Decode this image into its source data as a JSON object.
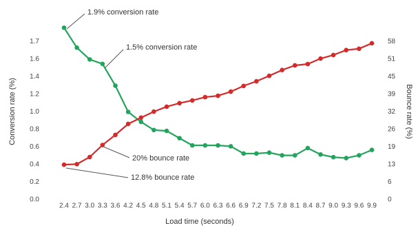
{
  "chart_data": {
    "type": "line",
    "xlabel": "Load time (seconds)",
    "ylabel": "Conversion rate (%)",
    "y2label": "Bounce rate (%)",
    "categories": [
      "2.4",
      "2.7",
      "3.0",
      "3.3",
      "3.6",
      "4.2",
      "4.5",
      "4.8",
      "5.1",
      "5.4",
      "5.7",
      "6.0",
      "6.3",
      "6.6",
      "6.9",
      "7.2",
      "7.5",
      "7.8",
      "8.1",
      "8.4",
      "8.7",
      "9.0",
      "9.3",
      "9.6",
      "9.9"
    ],
    "series": [
      {
        "color": "#22a45d",
        "values": [
          1.9,
          1.68,
          1.55,
          1.5,
          1.26,
          0.97,
          0.86,
          0.77,
          0.76,
          0.68,
          0.6,
          0.6,
          0.6,
          0.59,
          0.51,
          0.51,
          0.52,
          0.49,
          0.49,
          0.57,
          0.5,
          0.47,
          0.46,
          0.49,
          0.55
        ]
      },
      {
        "color": "#d42a2a",
        "axis": "y2",
        "values": [
          12.8,
          13.0,
          15.6,
          20,
          23.7,
          27.7,
          30.0,
          32.2,
          34.0,
          35.3,
          36.3,
          37.5,
          38.0,
          39.5,
          41.6,
          43.3,
          45.3,
          47.4,
          49.1,
          49.6,
          51.6,
          52.9,
          54.7,
          55.2,
          57.2
        ]
      }
    ],
    "ylim": [
      0,
      1.94
    ],
    "yticks": [
      {
        "value": 0,
        "label": "0.0"
      },
      {
        "value": 0.194,
        "label": "0.2"
      },
      {
        "value": 0.388,
        "label": "0.4"
      },
      {
        "value": 0.582,
        "label": "0.6"
      },
      {
        "value": 0.776,
        "label": "0.8"
      },
      {
        "value": 0.97,
        "label": "1.0"
      },
      {
        "value": 1.164,
        "label": "1.2"
      },
      {
        "value": 1.358,
        "label": "1.4"
      },
      {
        "value": 1.552,
        "label": "1.6"
      },
      {
        "value": 1.746,
        "label": "1.7"
      }
    ],
    "y2lim": [
      0,
      64.2
    ],
    "y2ticks": [
      0,
      {
        "value": 6.42,
        "label": "6"
      },
      {
        "value": 12.84,
        "label": "13"
      },
      {
        "value": 19.26,
        "label": "19"
      },
      {
        "value": 25.68,
        "label": "26"
      },
      {
        "value": 32.1,
        "label": "32"
      },
      {
        "value": 38.52,
        "label": "39"
      },
      {
        "value": 44.94,
        "label": "45"
      },
      {
        "value": 51.36,
        "label": "51"
      },
      {
        "value": 57.78,
        "label": "58"
      }
    ],
    "grid": false,
    "annotations": [
      "1.9% conversion rate",
      "1.5% conversion rate",
      "20% bounce rate",
      "12.8% bounce rate"
    ]
  }
}
